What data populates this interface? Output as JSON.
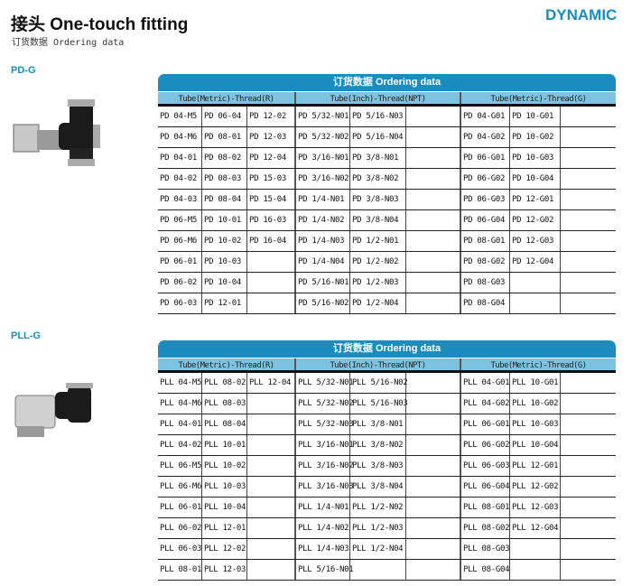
{
  "header": {
    "title": "接头 One-touch fitting",
    "subtitle": "订货数据 Ordering data",
    "logo": "DYNAMIC"
  },
  "sections": [
    {
      "label": "PD-G",
      "table_title": "订货数据 Ordering data",
      "groups": [
        "Tube(Metric)-Thread(R)",
        "Tube(Inch)-Thread(NPT)",
        "Tube(Metric)-Thread(G)"
      ],
      "rows": [
        [
          "PD 04-M5",
          "PD 06-04",
          "PD 12-02",
          "PD 5/32-N01",
          "PD 5/16-N03",
          "",
          "PD 04-G01",
          "PD 10-G01",
          ""
        ],
        [
          "PD 04-M6",
          "PD 08-01",
          "PD 12-03",
          "PD 5/32-N02",
          "PD 5/16-N04",
          "",
          "PD 04-G02",
          "PD 10-G02",
          ""
        ],
        [
          "PD 04-01",
          "PD 08-02",
          "PD 12-04",
          "PD 3/16-N01",
          "PD 3/8-N01",
          "",
          "PD 06-G01",
          "PD 10-G03",
          ""
        ],
        [
          "PD 04-02",
          "PD 08-03",
          "PD 15-03",
          "PD 3/16-N02",
          "PD 3/8-N02",
          "",
          "PD 06-G02",
          "PD 10-G04",
          ""
        ],
        [
          "PD 04-03",
          "PD 08-04",
          "PD 15-04",
          "PD 1/4-N01",
          "PD 3/8-N03",
          "",
          "PD 06-G03",
          "PD 12-G01",
          ""
        ],
        [
          "PD 06-M5",
          "PD 10-01",
          "PD 16-03",
          "PD 1/4-N02",
          "PD 3/8-N04",
          "",
          "PD 06-G04",
          "PD 12-G02",
          ""
        ],
        [
          "PD 06-M6",
          "PD 10-02",
          "PD 16-04",
          "PD 1/4-N03",
          "PD 1/2-N01",
          "",
          "PD 08-G01",
          "PD 12-G03",
          ""
        ],
        [
          "PD 06-01",
          "PD 10-03",
          "",
          "PD 1/4-N04",
          "PD 1/2-N02",
          "",
          "PD 08-G02",
          "PD 12-G04",
          ""
        ],
        [
          "PD 06-02",
          "PD 10-04",
          "",
          "PD 5/16-N01",
          "PD 1/2-N03",
          "",
          "PD 08-G03",
          "",
          ""
        ],
        [
          "PD 06-03",
          "PD 12-01",
          "",
          "PD 5/16-N02",
          "PD 1/2-N04",
          "",
          "PD 08-G04",
          "",
          ""
        ]
      ]
    },
    {
      "label": "PLL-G",
      "table_title": "订货数据 Ordering data",
      "groups": [
        "Tube(Metric)-Thread(R)",
        "Tube(Inch)-Thread(NPT)",
        "Tube(Metric)-Thread(G)"
      ],
      "rows": [
        [
          "PLL 04-M5",
          "PLL 08-02",
          "PLL 12-04",
          "PLL 5/32-N01",
          "PLL 5/16-N02",
          "",
          "PLL 04-G01",
          "PLL 10-G01",
          ""
        ],
        [
          "PLL 04-M6",
          "PLL 08-03",
          "",
          "PLL 5/32-N02",
          "PLL 5/16-N03",
          "",
          "PLL 04-G02",
          "PLL 10-G02",
          ""
        ],
        [
          "PLL 04-01",
          "PLL 08-04",
          "",
          "PLL 5/32-N03",
          "PLL 3/8-N01",
          "",
          "PLL 06-G01",
          "PLL 10-G03",
          ""
        ],
        [
          "PLL 04-02",
          "PLL 10-01",
          "",
          "PLL 3/16-N01",
          "PLL 3/8-N02",
          "",
          "PLL 06-G02",
          "PLL 10-G04",
          ""
        ],
        [
          "PLL 06-M5",
          "PLL 10-02",
          "",
          "PLL 3/16-N02",
          "PLL 3/8-N03",
          "",
          "PLL 06-G03",
          "PLL 12-G01",
          ""
        ],
        [
          "PLL 06-M6",
          "PLL 10-03",
          "",
          "PLL 3/16-N03",
          "PLL 3/8-N04",
          "",
          "PLL 06-G04",
          "PLL 12-G02",
          ""
        ],
        [
          "PLL 06-01",
          "PLL 10-04",
          "",
          "PLL 1/4-N01",
          "PLL 1/2-N02",
          "",
          "PLL 08-G01",
          "PLL 12-G03",
          ""
        ],
        [
          "PLL 06-02",
          "PLL 12-01",
          "",
          "PLL 1/4-N02",
          "PLL 1/2-N03",
          "",
          "PLL 08-G02",
          "PLL 12-G04",
          ""
        ],
        [
          "PLL 06-03",
          "PLL 12-02",
          "",
          "PLL 1/4-N03",
          "PLL 1/2-N04",
          "",
          "PLL 08-G03",
          "",
          ""
        ],
        [
          "PLL 08-01",
          "PLL 12-03",
          "",
          "PLL 5/16-N01",
          "",
          "",
          "PLL 08-G04",
          "",
          ""
        ]
      ]
    }
  ],
  "colors": {
    "accent": "#1a8cc0",
    "header_light": "#7cc3e2"
  }
}
